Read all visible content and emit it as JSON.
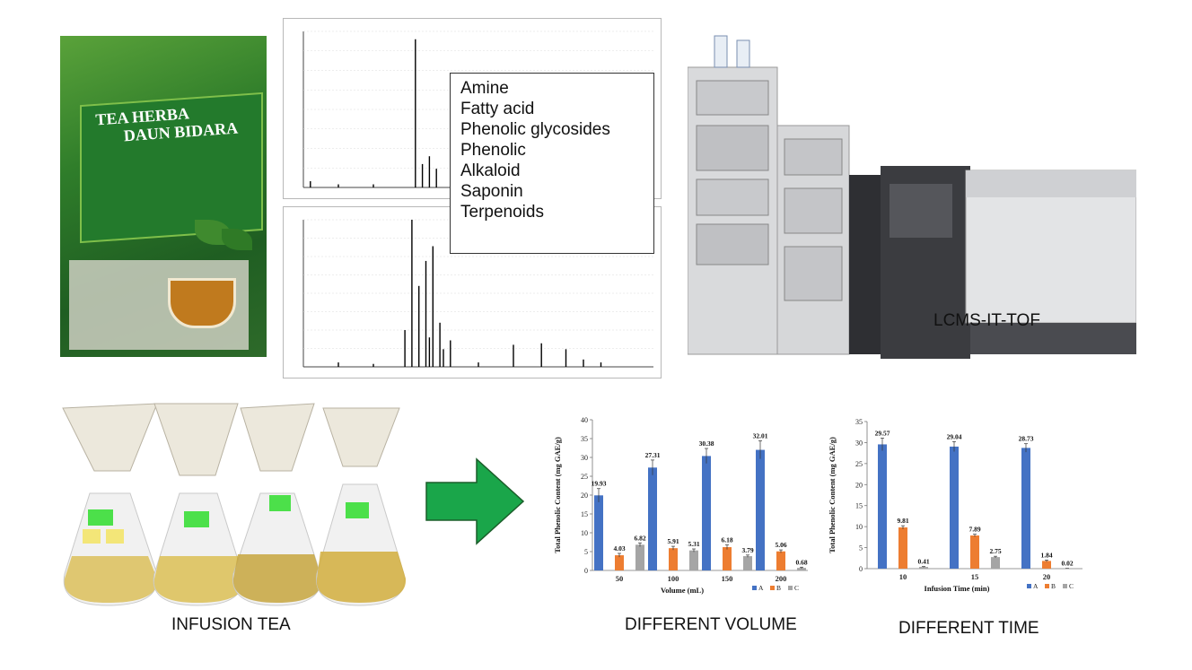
{
  "package": {
    "title_line1": "TEA HERBA",
    "title_line2": "DAUN BIDARA"
  },
  "compound_box": {
    "items": [
      "Amine",
      "Fatty acid",
      "Phenolic glycosides",
      "Phenolic",
      "Alkaloid",
      "Saponin",
      "Terpenoids"
    ]
  },
  "labels": {
    "instrument": "LCMS-IT-TOF",
    "infusion": "INFUSION TEA",
    "volume": "DIFFERENT VOLUME",
    "time": "DIFFERENT TIME"
  },
  "colors": {
    "series_a": "#4472c4",
    "series_b": "#ed7d31",
    "series_c": "#a5a5a5",
    "arrow": "#1aa64a",
    "spectrum_line": "#000000",
    "spectrum_annot": "#2a3fd6"
  },
  "chart_data": [
    {
      "type": "bar",
      "ylabel": "Total Phenolic Content (mg GAE/g)",
      "xlabel": "Volume (mL)",
      "categories": [
        "50",
        "100",
        "150",
        "200"
      ],
      "ylim": [
        0,
        40
      ],
      "yticks": [
        0,
        5,
        10,
        15,
        20,
        25,
        30,
        35,
        40
      ],
      "series": [
        {
          "name": "A",
          "values": [
            19.93,
            27.31,
            30.38,
            32.01
          ],
          "labels": [
            "19.93",
            "27.31",
            "30.38",
            "32.01"
          ],
          "errors": [
            1.8,
            2.0,
            2.0,
            2.4
          ]
        },
        {
          "name": "B",
          "values": [
            4.03,
            5.91,
            6.18,
            5.06
          ],
          "labels": [
            "4.03",
            "5.91",
            "6.18",
            "5.06"
          ],
          "errors": [
            0.5,
            0.5,
            0.6,
            0.4
          ]
        },
        {
          "name": "C",
          "values": [
            6.82,
            5.31,
            3.79,
            0.68
          ],
          "labels": [
            "6.82",
            "5.31",
            "3.79",
            "0.68"
          ],
          "errors": [
            0.5,
            0.4,
            0.3,
            0.2
          ]
        }
      ],
      "legend": "bottom-right",
      "grid": false
    },
    {
      "type": "bar",
      "ylabel": "Total Phenolic Content (mg GAE/g)",
      "xlabel": "Infusion Time (min)",
      "categories": [
        "10",
        "15",
        "20"
      ],
      "ylim": [
        0,
        35
      ],
      "yticks": [
        0,
        5,
        10,
        15,
        20,
        25,
        30,
        35
      ],
      "series": [
        {
          "name": "A",
          "values": [
            29.57,
            29.04,
            28.73
          ],
          "labels": [
            "29.57",
            "29.04",
            "28.73"
          ],
          "errors": [
            1.5,
            1.2,
            1.0
          ]
        },
        {
          "name": "B",
          "values": [
            9.81,
            7.89,
            1.84
          ],
          "labels": [
            "9.81",
            "7.89",
            "1.84"
          ],
          "errors": [
            0.4,
            0.3,
            0.2
          ]
        },
        {
          "name": "C",
          "values": [
            0.41,
            2.75,
            0.02
          ],
          "labels": [
            "0.41",
            "2.75",
            "0.02"
          ],
          "errors": [
            0.1,
            0.2,
            0.05
          ]
        }
      ],
      "legend": "bottom-right",
      "grid": false
    }
  ]
}
